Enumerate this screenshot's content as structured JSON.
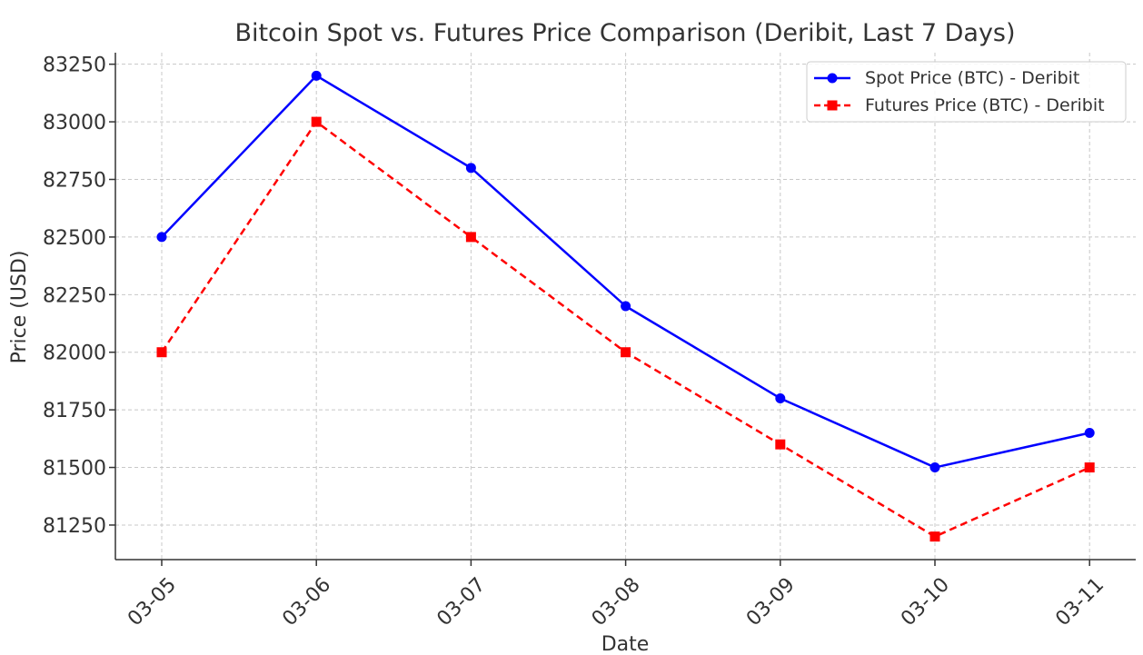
{
  "chart_data": {
    "type": "line",
    "title": "Bitcoin Spot vs. Futures Price Comparison (Deribit, Last 7 Days)",
    "xlabel": "Date",
    "ylabel": "Price (USD)",
    "categories": [
      "03-05",
      "03-06",
      "03-07",
      "03-08",
      "03-09",
      "03-10",
      "03-11"
    ],
    "yticks": [
      81250,
      81500,
      81750,
      82000,
      82250,
      82500,
      82750,
      83000,
      83250
    ],
    "ylim": [
      81100,
      83300
    ],
    "grid": true,
    "legend_position": "top-right",
    "series": [
      {
        "name": "Spot Price (BTC) - Deribit",
        "values": [
          82500,
          83200,
          82800,
          82200,
          81800,
          81500,
          81650
        ],
        "color": "#0000ff",
        "marker": "circle",
        "line_style": "solid"
      },
      {
        "name": "Futures Price (BTC) - Deribit",
        "values": [
          82000,
          83000,
          82500,
          82000,
          81600,
          81200,
          81500
        ],
        "color": "#ff0000",
        "marker": "square",
        "line_style": "dashed"
      }
    ]
  }
}
